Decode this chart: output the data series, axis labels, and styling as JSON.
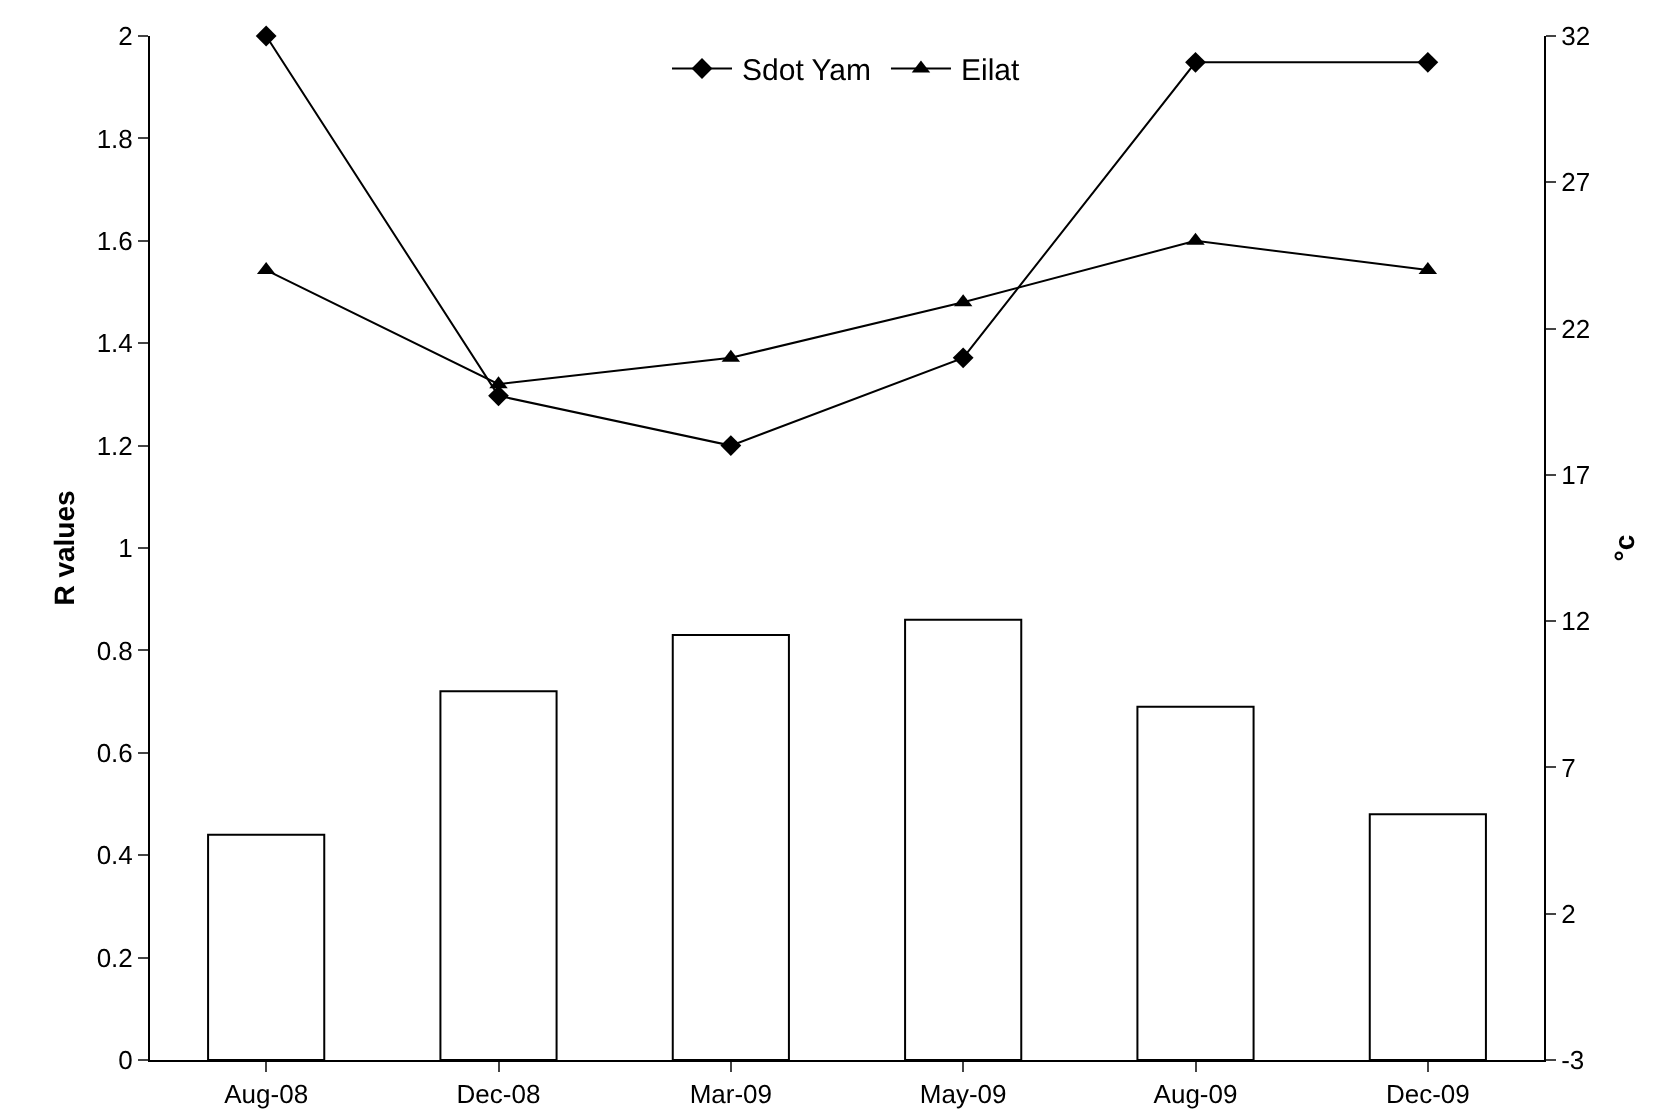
{
  "chart_data": {
    "type": "bar",
    "categories": [
      "Aug-08",
      "Dec-08",
      "Mar-09",
      "May-09",
      "Aug-09",
      "Dec-09"
    ],
    "ylabel": "R values",
    "y2label": "°c",
    "ylim": [
      0,
      2
    ],
    "yticks": [
      0,
      {
        "value": 0.2,
        "label": "0.2"
      },
      {
        "value": 0.4,
        "label": "0.4"
      },
      {
        "value": 0.6,
        "label": "0.6"
      },
      {
        "value": 0.8,
        "label": "0.8"
      },
      1,
      {
        "value": 1.2,
        "label": "1.2"
      },
      {
        "value": 1.4,
        "label": "1.4"
      },
      {
        "value": 1.6,
        "label": "1.6"
      },
      {
        "value": 1.8,
        "label": "1.8"
      },
      2
    ],
    "y2lim": [
      -3,
      32
    ],
    "y2ticks": [
      -3,
      2,
      7,
      12,
      17,
      22,
      27,
      32
    ],
    "grid": false,
    "legend": "top",
    "series": [
      {
        "color": "#ffffff",
        "values": [
          0.44,
          0.72,
          0.83,
          0.86,
          0.69,
          0.48
        ]
      },
      {
        "type": "line",
        "name": "Sdot Yam",
        "axis": "y2",
        "color": "#000000",
        "marker": "diamond",
        "values": [
          32,
          19.7,
          18,
          21,
          31.1,
          31.1
        ]
      },
      {
        "type": "line",
        "name": "Eilat",
        "axis": "y2",
        "color": "#000000",
        "marker": "triangle",
        "values": [
          24,
          20.1,
          21,
          22.9,
          25,
          24
        ]
      }
    ]
  }
}
